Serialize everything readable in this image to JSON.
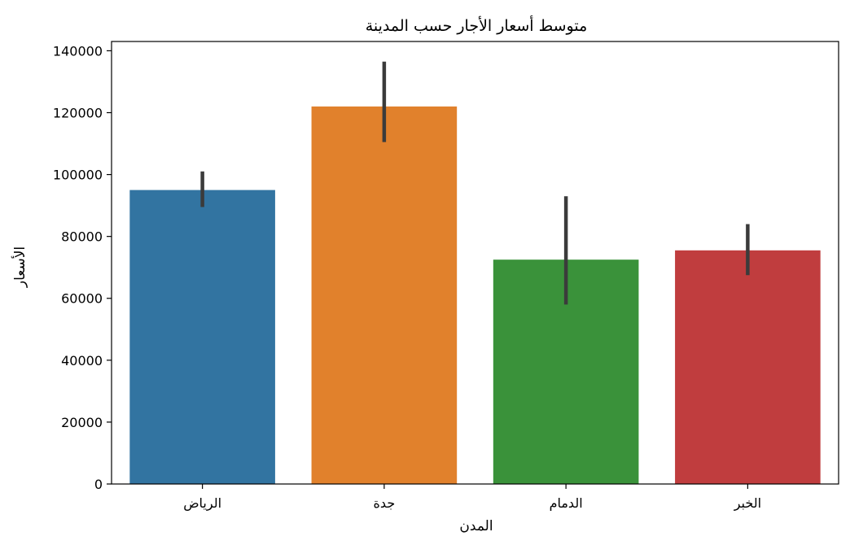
{
  "chart_data": {
    "type": "bar",
    "title": "متوسط أسعار الأجار حسب المدينة",
    "xlabel": "المدن",
    "ylabel": "الأسعار",
    "categories": [
      "الرياض",
      "جدة",
      "الدمام",
      "الخبر"
    ],
    "values": [
      95000,
      122000,
      72500,
      75500
    ],
    "error_low": [
      89500,
      110500,
      58000,
      67500
    ],
    "error_high": [
      101000,
      136500,
      93000,
      84000
    ],
    "colors": [
      "#3274a1",
      "#e1812c",
      "#3a923a",
      "#c03d3e"
    ],
    "error_color": "#3b3b3b",
    "ylim": [
      0,
      143000
    ],
    "yticks": [
      0,
      20000,
      40000,
      60000,
      80000,
      100000,
      120000,
      140000
    ],
    "grid": false,
    "legend": "none"
  }
}
